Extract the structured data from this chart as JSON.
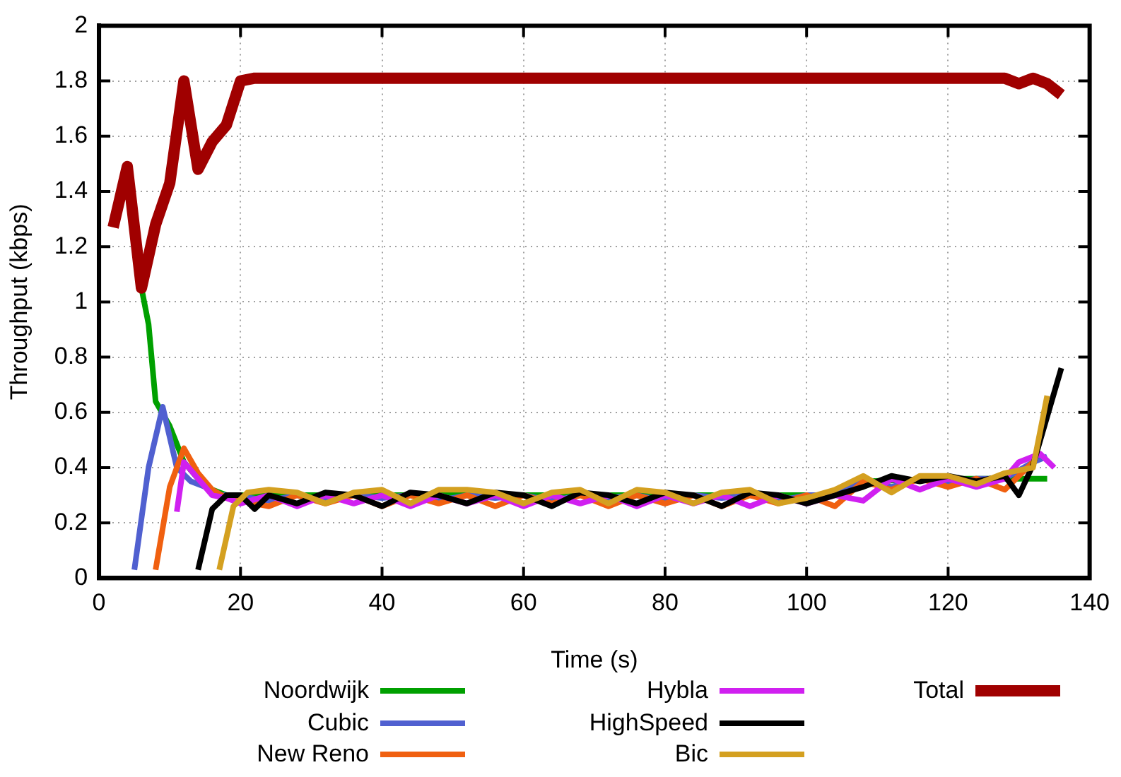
{
  "chart_data": {
    "type": "line",
    "xlabel": "Time (s)",
    "ylabel": "Throughput (kbps)",
    "xlim": [
      0,
      140
    ],
    "xticks": [
      0,
      20,
      40,
      60,
      80,
      100,
      120,
      140
    ],
    "ylim": [
      0,
      2
    ],
    "yticks": [
      0,
      0.2,
      0.4,
      0.6,
      0.8,
      1,
      1.2,
      1.4,
      1.6,
      1.8,
      2
    ],
    "grid": true,
    "legend": "bottom",
    "marker": "none",
    "line_style": "solid",
    "series": [
      {
        "name": "Noordwijk",
        "color": "#00a000",
        "x": [
          6,
          7,
          8,
          10,
          12,
          14,
          16,
          18,
          20,
          40,
          60,
          80,
          100,
          104,
          108,
          120,
          134
        ],
        "values": [
          1.05,
          0.92,
          0.64,
          0.55,
          0.42,
          0.36,
          0.32,
          0.3,
          0.3,
          0.3,
          0.3,
          0.3,
          0.3,
          0.3,
          0.35,
          0.36,
          0.36
        ]
      },
      {
        "name": "Cubic",
        "color": "#5060d0",
        "x": [
          5,
          7,
          9,
          11,
          13,
          15,
          17,
          19,
          24,
          28,
          32,
          36,
          40,
          44,
          48,
          52,
          56,
          60,
          64,
          68,
          72,
          76,
          80,
          84,
          88,
          92,
          96,
          100,
          104,
          108,
          112,
          116,
          120,
          124,
          128,
          132,
          134
        ],
        "values": [
          0.03,
          0.4,
          0.62,
          0.4,
          0.35,
          0.33,
          0.3,
          0.3,
          0.28,
          0.3,
          0.28,
          0.3,
          0.29,
          0.3,
          0.28,
          0.3,
          0.29,
          0.3,
          0.28,
          0.3,
          0.29,
          0.3,
          0.28,
          0.3,
          0.29,
          0.3,
          0.28,
          0.3,
          0.3,
          0.36,
          0.33,
          0.36,
          0.34,
          0.36,
          0.36,
          0.42,
          0.44
        ]
      },
      {
        "name": "New Reno",
        "color": "#f06010",
        "x": [
          8,
          10,
          12,
          14,
          16,
          18,
          20,
          24,
          28,
          32,
          36,
          40,
          44,
          48,
          52,
          56,
          60,
          64,
          68,
          72,
          76,
          80,
          84,
          88,
          92,
          96,
          100,
          104,
          108,
          112,
          116,
          120,
          124,
          128,
          132
        ],
        "values": [
          0.03,
          0.33,
          0.47,
          0.38,
          0.32,
          0.29,
          0.28,
          0.26,
          0.3,
          0.27,
          0.3,
          0.26,
          0.3,
          0.27,
          0.3,
          0.26,
          0.3,
          0.27,
          0.3,
          0.26,
          0.3,
          0.27,
          0.3,
          0.26,
          0.3,
          0.27,
          0.3,
          0.26,
          0.35,
          0.32,
          0.36,
          0.33,
          0.36,
          0.32,
          0.42
        ]
      },
      {
        "name": "Hybla",
        "color": "#d020f0",
        "x": [
          11,
          12,
          14,
          16,
          18,
          20,
          24,
          28,
          32,
          36,
          40,
          44,
          48,
          52,
          56,
          60,
          64,
          68,
          72,
          76,
          80,
          84,
          88,
          92,
          96,
          100,
          104,
          108,
          112,
          116,
          120,
          124,
          128,
          130,
          133,
          135
        ],
        "values": [
          0.24,
          0.42,
          0.36,
          0.3,
          0.29,
          0.27,
          0.3,
          0.26,
          0.3,
          0.27,
          0.3,
          0.26,
          0.3,
          0.27,
          0.3,
          0.26,
          0.3,
          0.27,
          0.3,
          0.26,
          0.3,
          0.27,
          0.3,
          0.26,
          0.3,
          0.27,
          0.3,
          0.28,
          0.36,
          0.32,
          0.36,
          0.33,
          0.36,
          0.42,
          0.45,
          0.4
        ]
      },
      {
        "name": "HighSpeed",
        "color": "#000000",
        "x": [
          14,
          16,
          18,
          20,
          22,
          24,
          28,
          32,
          36,
          40,
          44,
          48,
          52,
          56,
          60,
          64,
          68,
          72,
          76,
          80,
          84,
          88,
          92,
          96,
          100,
          104,
          108,
          112,
          116,
          120,
          124,
          128,
          130,
          132,
          136
        ],
        "values": [
          0.03,
          0.25,
          0.3,
          0.3,
          0.25,
          0.3,
          0.27,
          0.31,
          0.3,
          0.26,
          0.31,
          0.3,
          0.27,
          0.31,
          0.3,
          0.26,
          0.31,
          0.3,
          0.27,
          0.31,
          0.3,
          0.26,
          0.31,
          0.3,
          0.27,
          0.3,
          0.33,
          0.37,
          0.35,
          0.37,
          0.35,
          0.37,
          0.3,
          0.41,
          0.76
        ]
      },
      {
        "name": "Bic",
        "color": "#d4a020",
        "x": [
          17,
          19,
          21,
          24,
          28,
          32,
          36,
          40,
          44,
          48,
          52,
          56,
          60,
          64,
          68,
          72,
          76,
          80,
          84,
          88,
          92,
          96,
          100,
          104,
          108,
          112,
          116,
          120,
          124,
          128,
          130,
          132,
          134
        ],
        "values": [
          0.03,
          0.26,
          0.31,
          0.32,
          0.31,
          0.27,
          0.31,
          0.32,
          0.27,
          0.32,
          0.32,
          0.31,
          0.27,
          0.31,
          0.32,
          0.27,
          0.32,
          0.31,
          0.27,
          0.31,
          0.32,
          0.27,
          0.29,
          0.32,
          0.37,
          0.31,
          0.37,
          0.37,
          0.34,
          0.38,
          0.39,
          0.4,
          0.66
        ]
      },
      {
        "name": "Total",
        "color": "#a00000",
        "x": [
          2,
          4,
          6,
          8,
          10,
          12,
          14,
          16,
          18,
          20,
          22,
          40,
          60,
          80,
          100,
          120,
          128,
          130,
          132,
          134,
          136
        ],
        "values": [
          1.27,
          1.49,
          1.05,
          1.28,
          1.43,
          1.8,
          1.48,
          1.58,
          1.64,
          1.8,
          1.81,
          1.81,
          1.81,
          1.81,
          1.81,
          1.81,
          1.81,
          1.79,
          1.81,
          1.79,
          1.75
        ]
      }
    ]
  }
}
